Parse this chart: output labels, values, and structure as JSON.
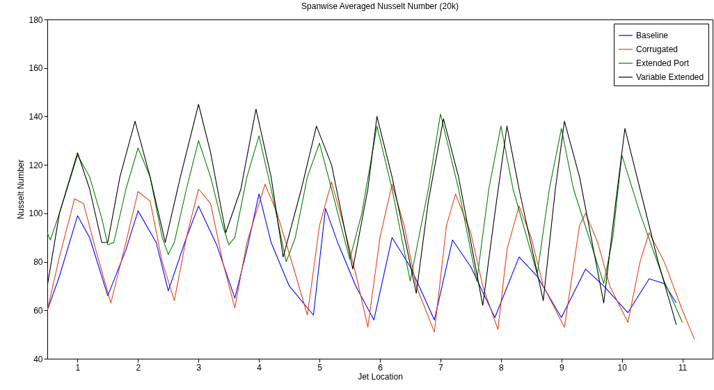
{
  "chart_data": {
    "type": "line",
    "title": "Spanwise Averaged Nusselt Number (20k)",
    "xlabel": "Jet Location",
    "ylabel": "Nusselt Number",
    "xlim": [
      0.5,
      11.5
    ],
    "xticks": [
      1,
      2,
      3,
      4,
      5,
      6,
      7,
      8,
      9,
      10,
      11
    ],
    "ylim": [
      40,
      180
    ],
    "yticks": [
      40,
      60,
      80,
      100,
      120,
      140,
      160,
      180
    ],
    "grid": false,
    "legend": "top right",
    "line_style": "solid",
    "series": [
      {
        "name": "Baseline",
        "color": "#0000ff",
        "x": [
          0.5,
          0.7,
          1.0,
          1.2,
          1.5,
          1.8,
          2.0,
          2.3,
          2.5,
          2.8,
          3.0,
          3.3,
          3.6,
          3.8,
          4.0,
          4.2,
          4.5,
          4.9,
          5.1,
          5.3,
          5.6,
          5.9,
          6.2,
          6.5,
          6.9,
          7.2,
          7.5,
          7.9,
          8.3,
          8.6,
          9.0,
          9.4,
          9.7,
          10.1,
          10.45,
          10.7,
          10.9
        ],
        "values": [
          60,
          74,
          99,
          90,
          66,
          85,
          101,
          88,
          68,
          90,
          103,
          87,
          65,
          85,
          108,
          88,
          70,
          58,
          102,
          88,
          70,
          56,
          90,
          78,
          56,
          89,
          78,
          57,
          82,
          74,
          57,
          77,
          70,
          59,
          73,
          71,
          63
        ]
      },
      {
        "name": "Corrugated",
        "color": "#e2401c",
        "x": [
          0.5,
          0.7,
          0.95,
          1.1,
          1.3,
          1.55,
          1.8,
          2.0,
          2.2,
          2.4,
          2.6,
          2.8,
          3.0,
          3.2,
          3.4,
          3.6,
          3.8,
          4.1,
          4.3,
          4.6,
          4.8,
          5.0,
          5.2,
          5.4,
          5.6,
          5.8,
          6.0,
          6.2,
          6.4,
          6.6,
          6.9,
          7.1,
          7.25,
          7.5,
          7.7,
          7.95,
          8.1,
          8.3,
          8.5,
          8.7,
          9.05,
          9.3,
          9.4,
          9.6,
          9.8,
          10.1,
          10.3,
          10.45,
          10.7,
          11.0,
          11.2
        ],
        "values": [
          60,
          82,
          106,
          104,
          85,
          63,
          88,
          109,
          105,
          80,
          64,
          90,
          110,
          104,
          80,
          61,
          88,
          112,
          100,
          75,
          58,
          95,
          113,
          95,
          75,
          53,
          90,
          112,
          95,
          70,
          51,
          95,
          108,
          92,
          70,
          52,
          85,
          103,
          90,
          70,
          53,
          95,
          100,
          88,
          70,
          55,
          80,
          92,
          80,
          60,
          48
        ]
      },
      {
        "name": "Extended Port",
        "color": "#008000",
        "x": [
          0.5,
          0.55,
          0.7,
          1.0,
          1.2,
          1.4,
          1.5,
          1.6,
          1.8,
          2.0,
          2.2,
          2.4,
          2.5,
          2.6,
          2.8,
          3.0,
          3.2,
          3.4,
          3.5,
          3.6,
          3.8,
          4.0,
          4.2,
          4.45,
          4.6,
          4.8,
          5.0,
          5.2,
          5.5,
          5.7,
          5.95,
          6.2,
          6.5,
          6.8,
          7.0,
          7.3,
          7.6,
          7.8,
          8.0,
          8.2,
          8.6,
          8.8,
          9.0,
          9.2,
          9.7,
          9.85,
          10.0,
          10.3,
          10.7,
          11.0
        ],
        "values": [
          92,
          89,
          100,
          124,
          115,
          98,
          87,
          88,
          110,
          127,
          115,
          90,
          83,
          88,
          110,
          130,
          115,
          95,
          87,
          90,
          115,
          132,
          110,
          80,
          90,
          115,
          129,
          110,
          81,
          100,
          136,
          110,
          72,
          110,
          141,
          110,
          72,
          110,
          136,
          110,
          75,
          110,
          135,
          110,
          71,
          90,
          124,
          100,
          72,
          55
        ]
      },
      {
        "name": "Variable Extended",
        "color": "#000000",
        "x": [
          0.5,
          0.7,
          1.0,
          1.2,
          1.4,
          1.5,
          1.7,
          1.95,
          2.2,
          2.45,
          2.7,
          3.0,
          3.2,
          3.45,
          3.7,
          3.95,
          4.2,
          4.4,
          4.7,
          4.95,
          5.2,
          5.55,
          5.8,
          5.95,
          6.2,
          6.6,
          6.8,
          7.05,
          7.3,
          7.7,
          7.9,
          8.1,
          8.3,
          8.7,
          8.9,
          9.05,
          9.3,
          9.7,
          9.9,
          10.05,
          10.3,
          10.6,
          10.9
        ],
        "values": [
          70,
          100,
          125,
          110,
          88,
          88,
          115,
          138,
          115,
          88,
          115,
          145,
          125,
          92,
          110,
          143,
          115,
          82,
          110,
          136,
          120,
          77,
          110,
          140,
          115,
          67,
          105,
          139,
          115,
          62,
          100,
          136,
          110,
          64,
          110,
          138,
          115,
          63,
          105,
          135,
          110,
          80,
          54
        ]
      }
    ]
  }
}
